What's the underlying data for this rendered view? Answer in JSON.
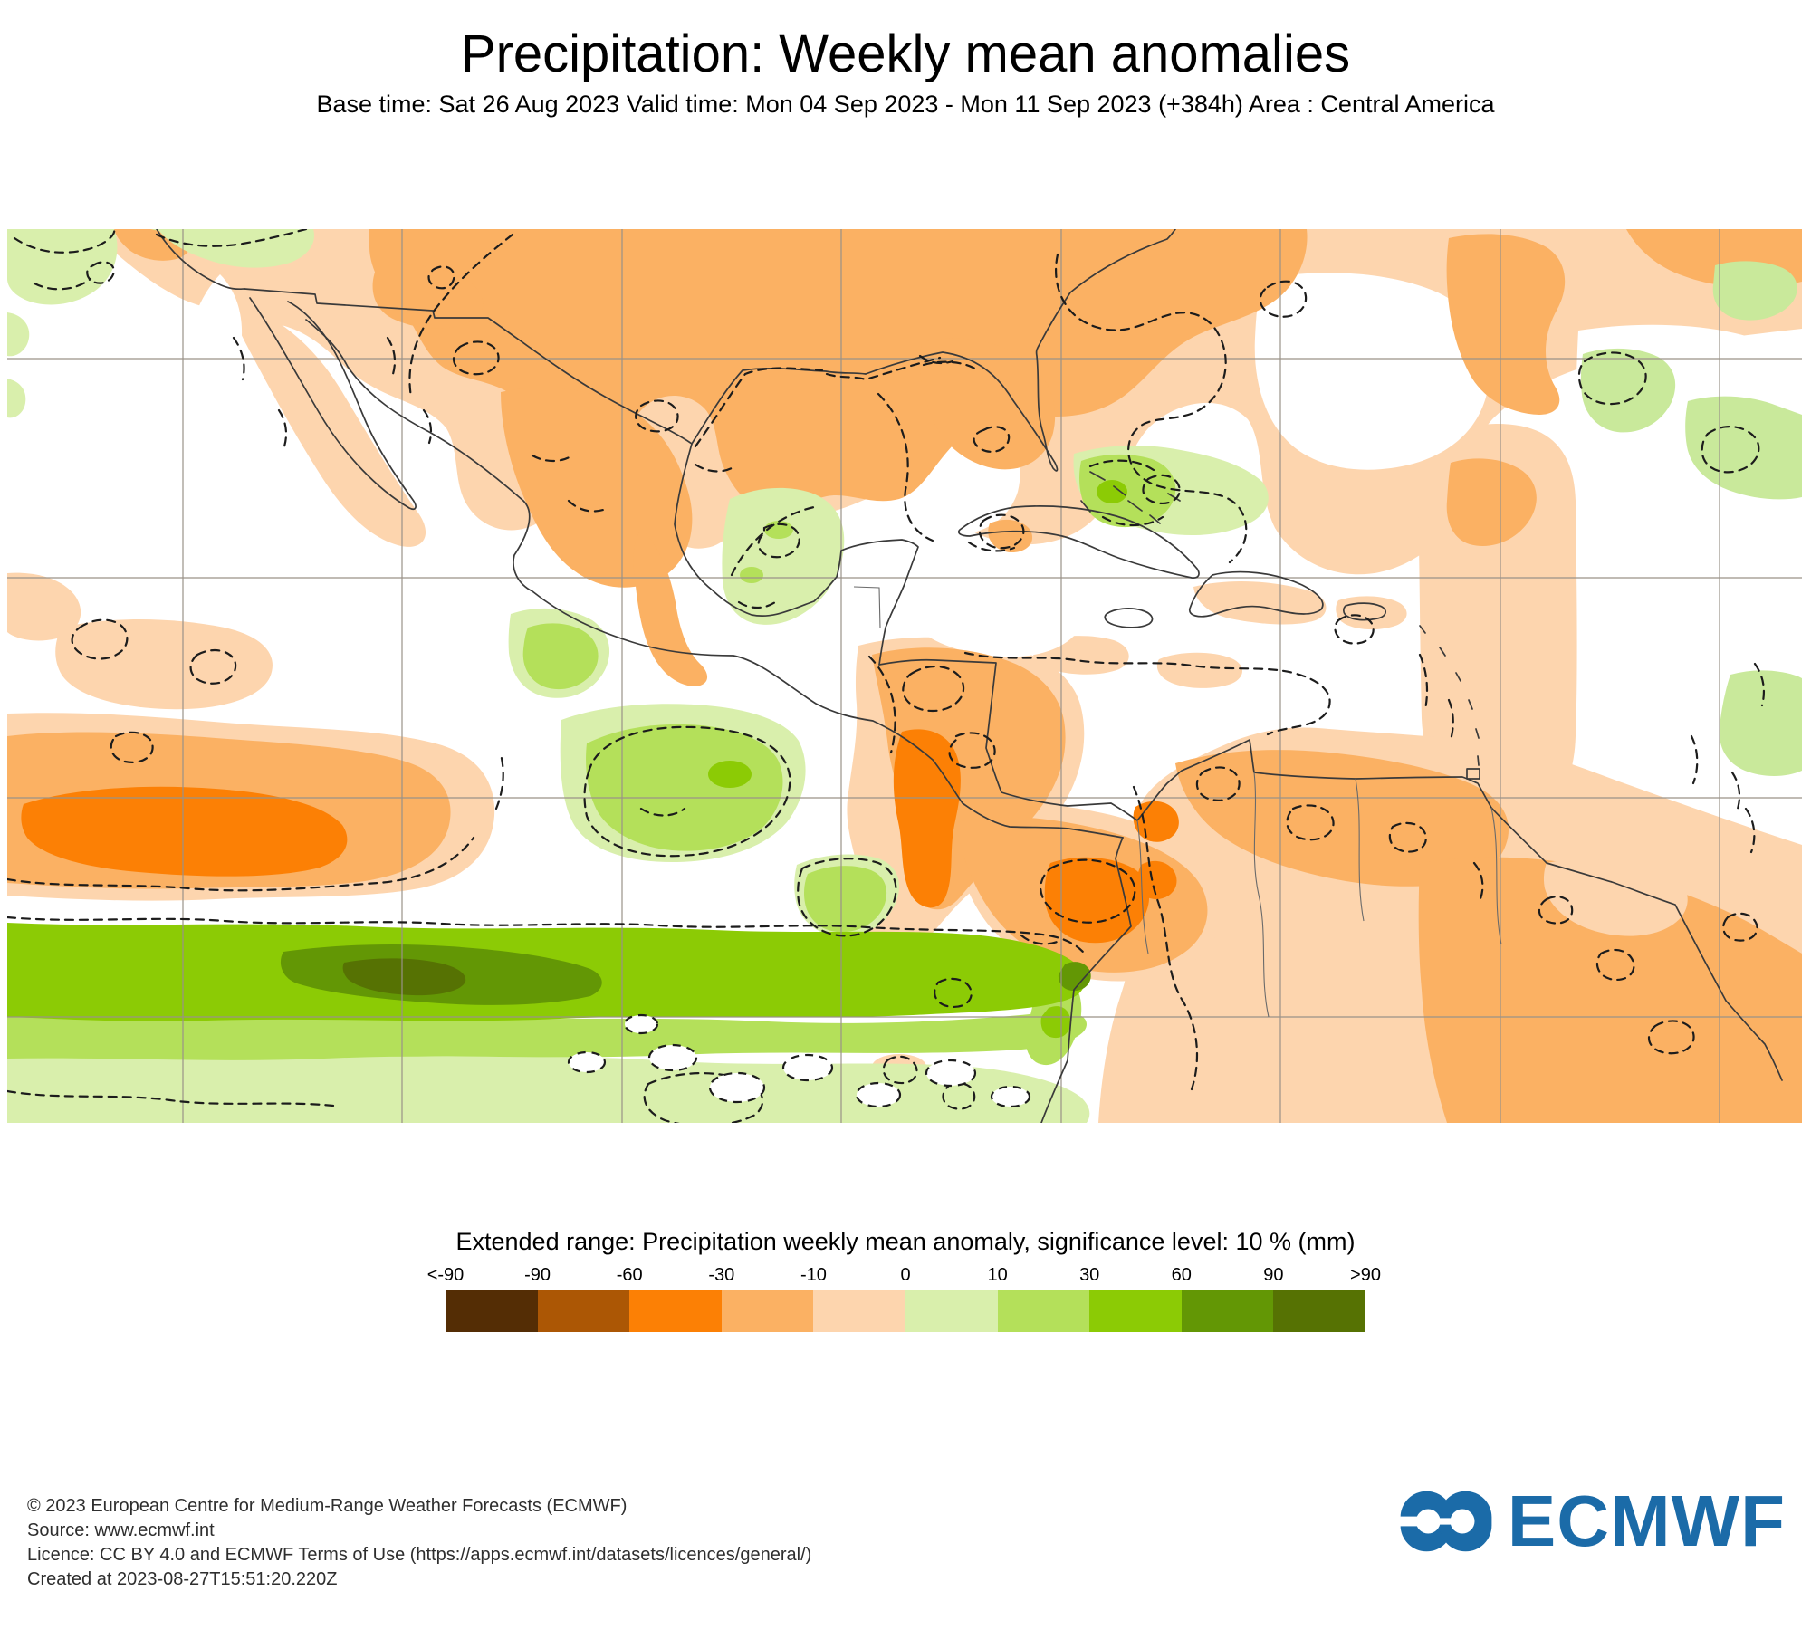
{
  "header": {
    "title": "Precipitation: Weekly mean anomalies",
    "subtitle": "Base time: Sat 26 Aug 2023 Valid time: Mon 04 Sep 2023 - Mon 11 Sep 2023 (+384h) Area : Central America"
  },
  "legend": {
    "title": "Extended range: Precipitation weekly mean anomaly, significance level: 10 % (mm)",
    "ticks": [
      "<-90",
      "-90",
      "-60",
      "-30",
      "-10",
      "0",
      "10",
      "30",
      "60",
      "90",
      ">90"
    ],
    "colors": [
      "#542D05",
      "#AC5705",
      "#FC8005",
      "#FBB163",
      "#FDD5AE",
      "#D9EFAC",
      "#B4E05A",
      "#8CCB05",
      "#639705",
      "#567203"
    ]
  },
  "footer": {
    "lines": [
      "© 2023 European Centre for Medium-Range Weather Forecasts (ECMWF)",
      "Source: www.ecmwf.int",
      "Licence: CC BY 4.0 and ECMWF Terms of Use (https://apps.ecmwf.int/datasets/licences/general/)",
      "Created at 2023-08-27T15:51:20.220Z"
    ],
    "logo_text": "ECMWF",
    "logo_color": "#1B6BA8"
  }
}
